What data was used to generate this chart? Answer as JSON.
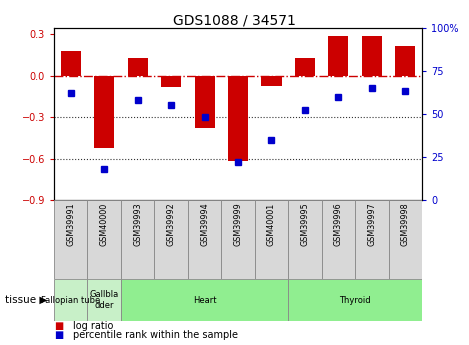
{
  "title": "GDS1088 / 34571",
  "samples": [
    "GSM39991",
    "GSM40000",
    "GSM39993",
    "GSM39992",
    "GSM39994",
    "GSM39999",
    "GSM40001",
    "GSM39995",
    "GSM39996",
    "GSM39997",
    "GSM39998"
  ],
  "log_ratio": [
    0.18,
    -0.52,
    0.13,
    -0.08,
    -0.38,
    -0.62,
    -0.07,
    0.13,
    0.29,
    0.29,
    0.22
  ],
  "percentile_rank": [
    62,
    18,
    58,
    55,
    48,
    22,
    35,
    52,
    60,
    65,
    63
  ],
  "tissues": [
    {
      "label": "Fallopian tube",
      "start": 0,
      "end": 1,
      "color": "#c8f0c8"
    },
    {
      "label": "Gallbla\ndder",
      "start": 1,
      "end": 2,
      "color": "#c8f0c8"
    },
    {
      "label": "Heart",
      "start": 2,
      "end": 7,
      "color": "#90EE90"
    },
    {
      "label": "Thyroid",
      "start": 7,
      "end": 11,
      "color": "#90EE90"
    }
  ],
  "bar_color": "#cc0000",
  "dot_color": "#0000cc",
  "ylim_left": [
    -0.9,
    0.35
  ],
  "ylim_right": [
    0,
    100
  ],
  "yticks_left": [
    -0.9,
    -0.6,
    -0.3,
    0.0,
    0.3
  ],
  "yticks_right": [
    0,
    25,
    50,
    75,
    100
  ],
  "hline_zero_color": "#cc0000",
  "hline_dotted_color": "#333333",
  "background_color": "#ffffff",
  "plot_bg_color": "#ffffff",
  "bar_width": 0.6,
  "xlim": [
    -0.5,
    10.5
  ]
}
